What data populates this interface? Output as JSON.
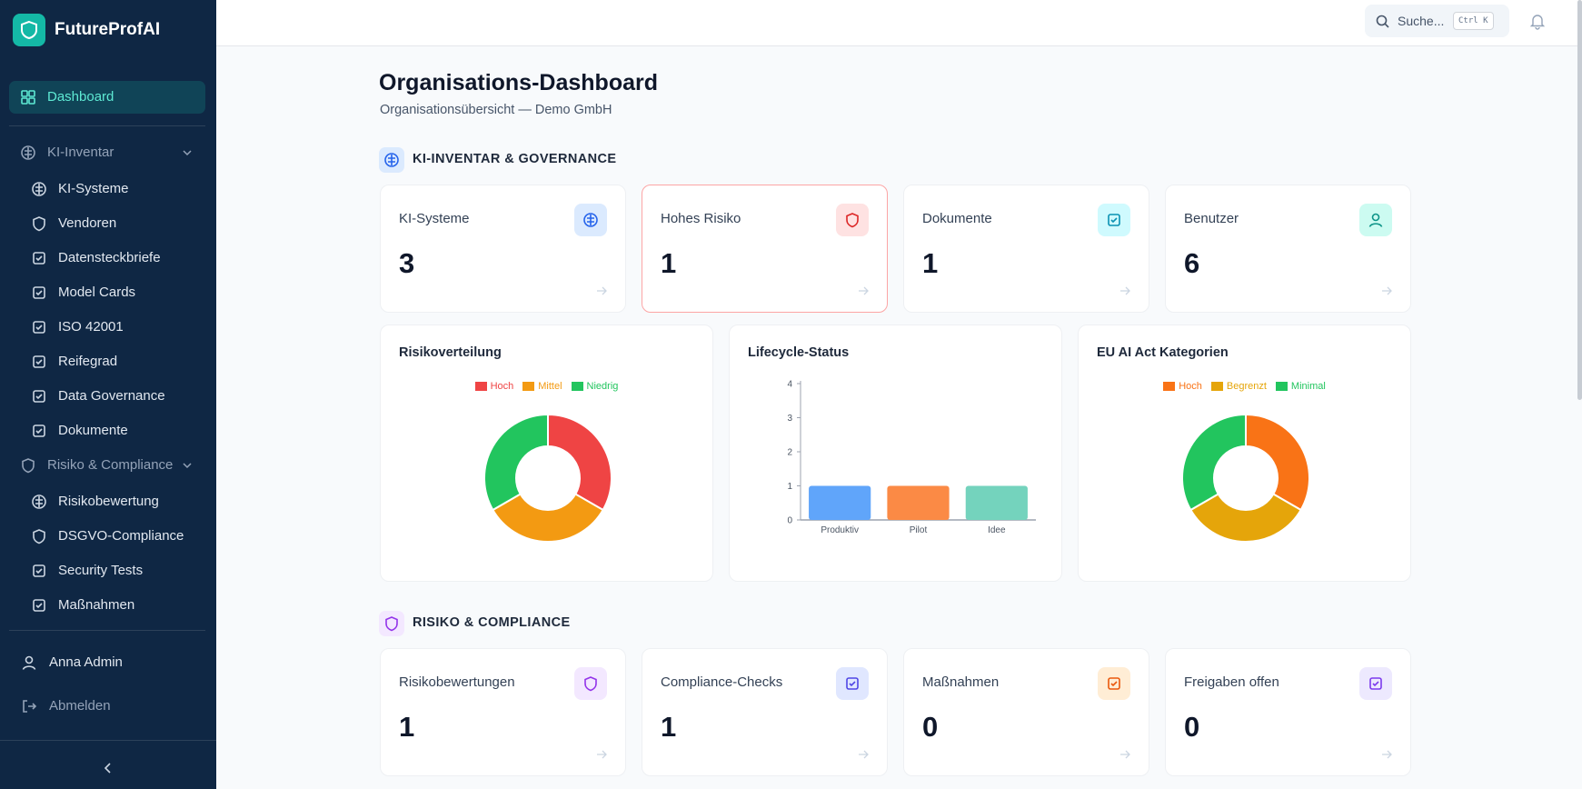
{
  "sidebar": {
    "brand": "FutureProfAI",
    "dashboard": "Dashboard",
    "groups": [
      {
        "label": "KI-Inventar",
        "items": [
          "KI-Systeme",
          "Vendoren",
          "Datensteckbriefe",
          "Model Cards",
          "ISO 42001",
          "Reifegrad",
          "Data Governance",
          "Dokumente"
        ]
      },
      {
        "label": "Risiko & Compliance",
        "items": [
          "Risikobewertung",
          "DSGVO-Compliance",
          "Security Tests",
          "Maßnahmen"
        ]
      }
    ],
    "user": "Anna Admin",
    "logout": "Abmelden"
  },
  "header": {
    "search": "Suche...",
    "shortcut": "Ctrl K"
  },
  "page": {
    "title": "Organisations-Dashboard",
    "subtitle": "Organisationsübersicht — Demo GmbH"
  },
  "sections": [
    {
      "title": "KI-INVENTAR & GOVERNANCE",
      "cards": [
        {
          "label": "KI-Systeme",
          "value": 3
        },
        {
          "label": "Hohes Risiko",
          "value": 1
        },
        {
          "label": "Dokumente",
          "value": 1
        },
        {
          "label": "Benutzer",
          "value": 6
        }
      ]
    },
    {
      "title": "RISIKO & COMPLIANCE",
      "cards": [
        {
          "label": "Risikobewertungen",
          "value": 1
        },
        {
          "label": "Compliance-Checks",
          "value": 1
        },
        {
          "label": "Maßnahmen",
          "value": 0
        },
        {
          "label": "Freigaben offen",
          "value": 0
        }
      ]
    }
  ],
  "chart_data": [
    {
      "type": "donut",
      "title": "Risikoverteilung",
      "categories": [
        "Hoch",
        "Mittel",
        "Niedrig"
      ],
      "values": [
        1,
        1,
        1
      ],
      "colors": [
        "#ef4444",
        "#f39a12",
        "#22c55e"
      ]
    },
    {
      "type": "bar",
      "title": "Lifecycle-Status",
      "categories": [
        "Produktiv",
        "Pilot",
        "Idee"
      ],
      "values": [
        1,
        1,
        1
      ],
      "colors": [
        "#60a5fa",
        "#fb8a45",
        "#74d3bd"
      ],
      "ylim": [
        0,
        4
      ],
      "yticks": [
        0,
        1,
        2,
        3,
        4
      ]
    },
    {
      "type": "donut",
      "title": "EU AI Act Kategorien",
      "categories": [
        "Hoch",
        "Begrenzt",
        "Minimal"
      ],
      "values": [
        1,
        1,
        1
      ],
      "colors": [
        "#f97316",
        "#e5a50a",
        "#22c55e"
      ]
    }
  ]
}
